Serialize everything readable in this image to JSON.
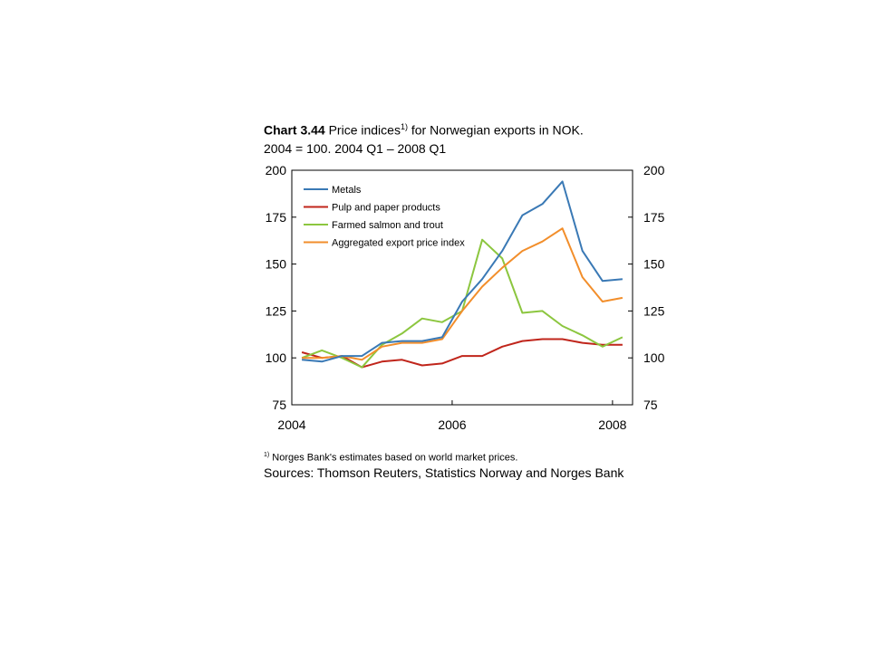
{
  "title_block": {
    "prefix": "Chart 3.44",
    "text_a": " Price indices",
    "sup": "1)",
    "text_b": " for Norwegian exports in NOK.",
    "line2": "2004 = 100. 2004 Q1 – 2008 Q1"
  },
  "footnote": {
    "sup": "1)",
    "text": " Norges Bank's estimates based on world market prices."
  },
  "sources": "Sources: Thomson Reuters, Statistics Norway and Norges Bank",
  "chart_data": {
    "type": "line",
    "ylim": [
      75,
      200
    ],
    "xlim": [
      2004.0,
      2008.25
    ],
    "y_ticks": [
      75,
      100,
      125,
      150,
      175,
      200
    ],
    "x_ticks": [
      2004,
      2006,
      2008
    ],
    "grid": false,
    "legend_position": "top-left",
    "x": [
      2004.125,
      2004.375,
      2004.625,
      2004.875,
      2005.125,
      2005.375,
      2005.625,
      2005.875,
      2006.125,
      2006.375,
      2006.625,
      2006.875,
      2007.125,
      2007.375,
      2007.625,
      2007.875,
      2008.125
    ],
    "series": [
      {
        "name": "Metals",
        "color": "#3a79b5",
        "values": [
          99,
          98,
          101,
          101,
          108,
          109,
          109,
          111,
          130,
          142,
          157,
          176,
          182,
          194,
          157,
          141,
          142
        ]
      },
      {
        "name": "Pulp and paper products",
        "color": "#c0251b",
        "values": [
          103,
          100,
          101,
          95,
          98,
          99,
          96,
          97,
          101,
          101,
          106,
          109,
          110,
          110,
          108,
          107,
          107
        ]
      },
      {
        "name": "Farmed salmon and trout",
        "color": "#8cc63f",
        "values": [
          100,
          104,
          100,
          95,
          107,
          113,
          121,
          119,
          125,
          163,
          153,
          124,
          125,
          117,
          112,
          106,
          111
        ]
      },
      {
        "name": "Aggregated export price index",
        "color": "#f28e2b",
        "values": [
          100,
          100,
          101,
          99,
          106,
          108,
          108,
          110,
          125,
          138,
          148,
          157,
          162,
          169,
          143,
          130,
          132
        ]
      }
    ]
  }
}
